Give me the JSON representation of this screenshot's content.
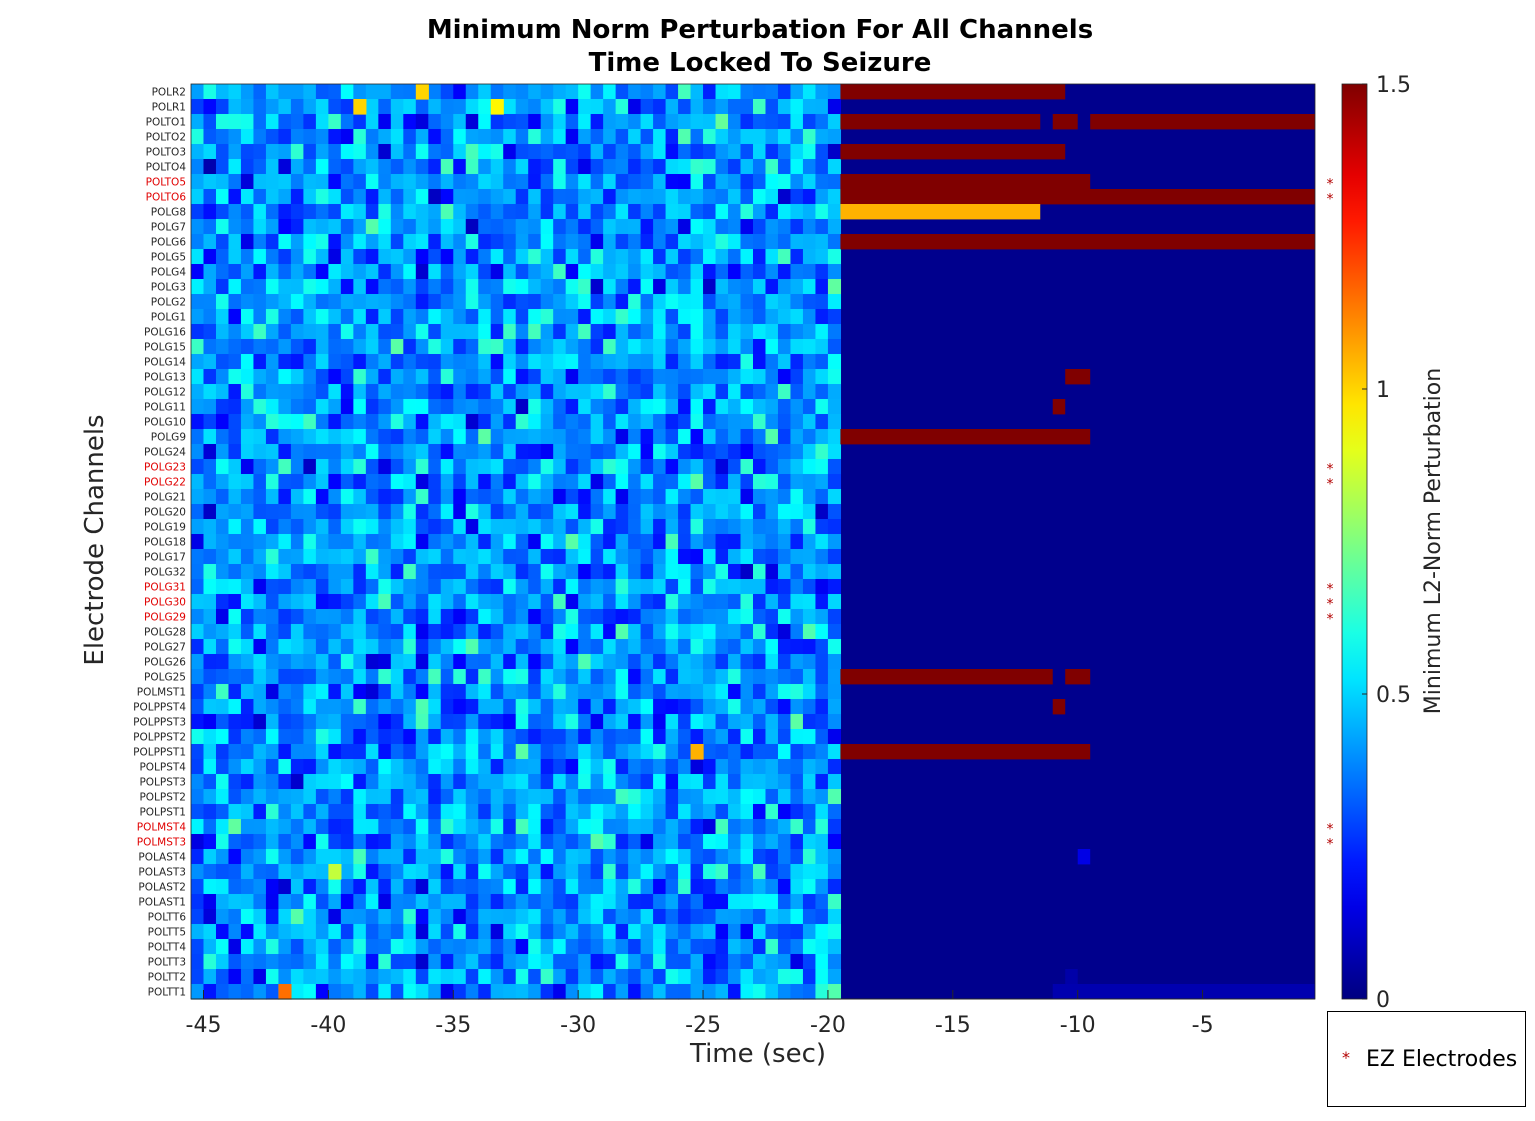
{
  "chart_data": {
    "type": "heatmap",
    "title": [
      "Minimum Norm Perturbation For All Channels",
      "Time Locked To Seizure"
    ],
    "xlabel": "Time (sec)",
    "ylabel": "Electrode Channels",
    "xlim": [
      -45.5,
      -0.5
    ],
    "x_ticks": [
      -45,
      -40,
      -35,
      -30,
      -25,
      -20,
      -15,
      -10,
      -5
    ],
    "time_step_sec": 0.5,
    "colorbar": {
      "label": "Minimum L2-Norm Perturbation",
      "range": [
        0,
        1.5
      ],
      "ticks": [
        "0",
        "0.5",
        "1",
        "1.5"
      ],
      "colormap": "jet"
    },
    "legend": {
      "marker": "*",
      "label": "EZ Electrodes"
    },
    "ez_color": "#e00000",
    "channels": [
      {
        "name": "POLR2",
        "ez": false
      },
      {
        "name": "POLR1",
        "ez": false
      },
      {
        "name": "POLTO1",
        "ez": false
      },
      {
        "name": "POLTO2",
        "ez": false
      },
      {
        "name": "POLTO3",
        "ez": false
      },
      {
        "name": "POLTO4",
        "ez": false
      },
      {
        "name": "POLTO5",
        "ez": true
      },
      {
        "name": "POLTO6",
        "ez": true
      },
      {
        "name": "POLG8",
        "ez": false
      },
      {
        "name": "POLG7",
        "ez": false
      },
      {
        "name": "POLG6",
        "ez": false
      },
      {
        "name": "POLG5",
        "ez": false
      },
      {
        "name": "POLG4",
        "ez": false
      },
      {
        "name": "POLG3",
        "ez": false
      },
      {
        "name": "POLG2",
        "ez": false
      },
      {
        "name": "POLG1",
        "ez": false
      },
      {
        "name": "POLG16",
        "ez": false
      },
      {
        "name": "POLG15",
        "ez": false
      },
      {
        "name": "POLG14",
        "ez": false
      },
      {
        "name": "POLG13",
        "ez": false
      },
      {
        "name": "POLG12",
        "ez": false
      },
      {
        "name": "POLG11",
        "ez": false
      },
      {
        "name": "POLG10",
        "ez": false
      },
      {
        "name": "POLG9",
        "ez": false
      },
      {
        "name": "POLG24",
        "ez": false
      },
      {
        "name": "POLG23",
        "ez": true
      },
      {
        "name": "POLG22",
        "ez": true
      },
      {
        "name": "POLG21",
        "ez": false
      },
      {
        "name": "POLG20",
        "ez": false
      },
      {
        "name": "POLG19",
        "ez": false
      },
      {
        "name": "POLG18",
        "ez": false
      },
      {
        "name": "POLG17",
        "ez": false
      },
      {
        "name": "POLG32",
        "ez": false
      },
      {
        "name": "POLG31",
        "ez": true
      },
      {
        "name": "POLG30",
        "ez": true
      },
      {
        "name": "POLG29",
        "ez": true
      },
      {
        "name": "POLG28",
        "ez": false
      },
      {
        "name": "POLG27",
        "ez": false
      },
      {
        "name": "POLG26",
        "ez": false
      },
      {
        "name": "POLG25",
        "ez": false
      },
      {
        "name": "POLMST1",
        "ez": false
      },
      {
        "name": "POLPPST4",
        "ez": false
      },
      {
        "name": "POLPPST3",
        "ez": false
      },
      {
        "name": "POLPPST2",
        "ez": false
      },
      {
        "name": "POLPPST1",
        "ez": false
      },
      {
        "name": "POLPST4",
        "ez": false
      },
      {
        "name": "POLPST3",
        "ez": false
      },
      {
        "name": "POLPST2",
        "ez": false
      },
      {
        "name": "POLPST1",
        "ez": false
      },
      {
        "name": "POLMST4",
        "ez": true
      },
      {
        "name": "POLMST3",
        "ez": true
      },
      {
        "name": "POLAST4",
        "ez": false
      },
      {
        "name": "POLAST3",
        "ez": false
      },
      {
        "name": "POLAST2",
        "ez": false
      },
      {
        "name": "POLAST1",
        "ez": false
      },
      {
        "name": "POLTT6",
        "ez": false
      },
      {
        "name": "POLTT5",
        "ez": false
      },
      {
        "name": "POLTT4",
        "ez": false
      },
      {
        "name": "POLTT3",
        "ez": false
      },
      {
        "name": "POLTT2",
        "ez": false
      },
      {
        "name": "POLTT1",
        "ez": false
      }
    ],
    "pre_window": {
      "description": "noisy values for every channel from -45.5 to -19.5 s",
      "x_range": [
        -45.5,
        -19.5
      ],
      "value_range": [
        0.05,
        0.75
      ],
      "typical_value": 0.35,
      "outliers": [
        {
          "channel": "POLR2",
          "x": -36.5,
          "value": 1.0
        },
        {
          "channel": "POLR1",
          "x": -39,
          "value": 1.0
        },
        {
          "channel": "POLR1",
          "x": -33.5,
          "value": 0.95
        },
        {
          "channel": "POLPPST1",
          "x": -25.5,
          "value": 1.05
        },
        {
          "channel": "POLTT1",
          "x": -42,
          "value": 1.15
        },
        {
          "channel": "POLAST3",
          "x": -40,
          "value": 0.85
        }
      ]
    },
    "post_window_baseline": 0.02,
    "post_segments": [
      {
        "channel": "POLR2",
        "x_start": -19.5,
        "x_end": -10.5,
        "value": 1.5
      },
      {
        "channel": "POLTO1",
        "x_start": -19.5,
        "x_end": -11.5,
        "value": 1.5
      },
      {
        "channel": "POLTO1",
        "x_start": -11,
        "x_end": -10,
        "value": 1.5
      },
      {
        "channel": "POLTO1",
        "x_start": -9.5,
        "x_end": -0.5,
        "value": 1.5
      },
      {
        "channel": "POLTO3",
        "x_start": -19.5,
        "x_end": -10.5,
        "value": 1.5
      },
      {
        "channel": "POLTO5",
        "x_start": -19.5,
        "x_end": -9.5,
        "value": 1.5
      },
      {
        "channel": "POLTO6",
        "x_start": -19.5,
        "x_end": -0.5,
        "value": 1.5
      },
      {
        "channel": "POLG8",
        "x_start": -19.5,
        "x_end": -11.5,
        "value": 1.05
      },
      {
        "channel": "POLG6",
        "x_start": -19.5,
        "x_end": -0.5,
        "value": 1.5
      },
      {
        "channel": "POLG13",
        "x_start": -10.5,
        "x_end": -9.5,
        "value": 1.5
      },
      {
        "channel": "POLG11",
        "x_start": -11,
        "x_end": -10.5,
        "value": 1.5
      },
      {
        "channel": "POLG9",
        "x_start": -19.5,
        "x_end": -9.5,
        "value": 1.5
      },
      {
        "channel": "POLG25",
        "x_start": -19.5,
        "x_end": -11,
        "value": 1.5
      },
      {
        "channel": "POLG25",
        "x_start": -10.5,
        "x_end": -9.5,
        "value": 1.5
      },
      {
        "channel": "POLPPST4",
        "x_start": -11,
        "x_end": -10.5,
        "value": 1.5
      },
      {
        "channel": "POLPPST1",
        "x_start": -19.5,
        "x_end": -9.5,
        "value": 1.5
      },
      {
        "channel": "POLAST4",
        "x_start": -10,
        "x_end": -9.5,
        "value": 0.15
      },
      {
        "channel": "POLTT2",
        "x_start": -10.5,
        "x_end": -10,
        "value": 0.06
      },
      {
        "channel": "POLTT1",
        "x_start": -11,
        "x_end": -0.5,
        "value": 0.07
      }
    ]
  }
}
